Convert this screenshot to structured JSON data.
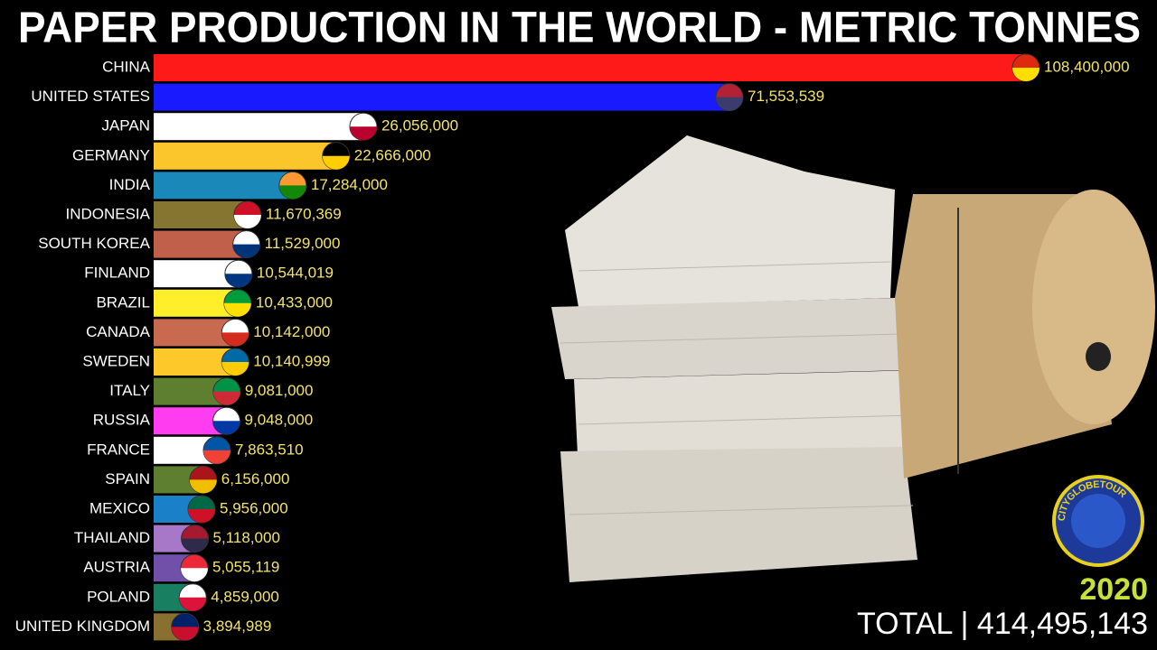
{
  "chart_data": {
    "type": "bar",
    "orientation": "horizontal",
    "title": "PAPER PRODUCTION IN THE WORLD - METRIC TONNES",
    "categories": [
      "CHINA",
      "UNITED STATES",
      "JAPAN",
      "GERMANY",
      "INDIA",
      "INDONESIA",
      "SOUTH KOREA",
      "FINLAND",
      "BRAZIL",
      "CANADA",
      "SWEDEN",
      "ITALY",
      "RUSSIA",
      "FRANCE",
      "SPAIN",
      "MEXICO",
      "THAILAND",
      "AUSTRIA",
      "POLAND",
      "UNITED KINGDOM"
    ],
    "values": [
      108400000,
      71553539,
      26056000,
      22666000,
      17284000,
      11670369,
      11529000,
      10544019,
      10433000,
      10142000,
      10140999,
      9081000,
      9048000,
      7863510,
      6156000,
      5956000,
      5118000,
      5055119,
      4859000,
      3894989
    ],
    "value_labels": [
      "108,400,000",
      "71,553,539",
      "26,056,000",
      "22,666,000",
      "17,284,000",
      "11,670,369",
      "11,529,000",
      "10,544,019",
      "10,433,000",
      "10,142,000",
      "10,140,999",
      "9,081,000",
      "9,048,000",
      "7,863,510",
      "6,156,000",
      "5,956,000",
      "5,118,000",
      "5,055,119",
      "4,859,000",
      "3,894,989"
    ],
    "colors": [
      "#ff1a1a",
      "#1a1aff",
      "#ffffff",
      "#fbc62b",
      "#1a88b8",
      "#857530",
      "#c0604a",
      "#ffffff",
      "#ffee2a",
      "#c86a50",
      "#fdc92a",
      "#5e7f30",
      "#ff3cf0",
      "#ffffff",
      "#5f7f30",
      "#1a80c8",
      "#a878c8",
      "#7050a8",
      "#188060",
      "#8a7030"
    ],
    "year": "2020",
    "total_label": "TOTAL | 414,495,143",
    "logo_text": "CITYGLOBETOUR"
  }
}
